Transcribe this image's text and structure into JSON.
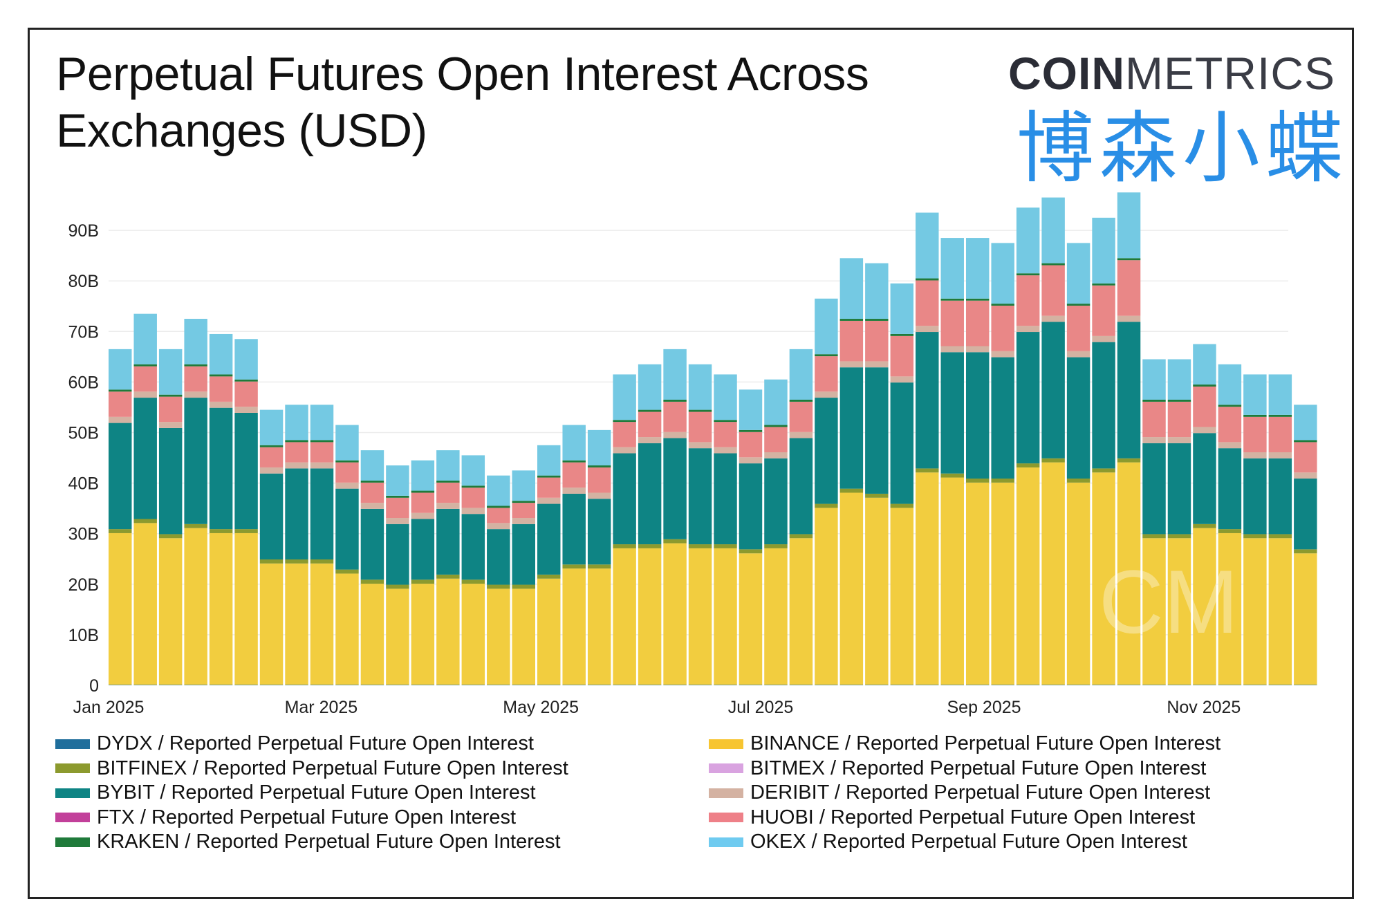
{
  "title": "Perpetual Futures Open Interest Across Exchanges (USD)",
  "logo": {
    "bold": "COIN",
    "thin": "METRICS"
  },
  "watermark_cm": "CM",
  "overlay_watermark": "博森小蝶",
  "chart_data": {
    "type": "bar",
    "stacked": true,
    "title": "Perpetual Futures Open Interest Across Exchanges (USD)",
    "xlabel": "",
    "ylabel": "",
    "ylim": [
      0,
      100
    ],
    "y_unit": "B USD",
    "yticks": [
      "0",
      "10B",
      "20B",
      "30B",
      "40B",
      "50B",
      "60B",
      "70B",
      "80B",
      "90B"
    ],
    "ytick_values": [
      0,
      10,
      20,
      30,
      40,
      50,
      60,
      70,
      80,
      90
    ],
    "xticks": [
      {
        "label": "Jan 2025",
        "day": 0
      },
      {
        "label": "Mar 2025",
        "day": 59
      },
      {
        "label": "May 2025",
        "day": 120
      },
      {
        "label": "Jul 2025",
        "day": 181
      },
      {
        "label": "Sep 2025",
        "day": 243
      },
      {
        "label": "Nov 2025",
        "day": 304
      }
    ],
    "x_start": "2025-01-01",
    "x_step_days": 7,
    "grid": true,
    "legend_position": "bottom",
    "series": [
      {
        "name": "DYDX / Reported Perpetual Future Open Interest",
        "color": "#1f6e9c",
        "constant": 0.1
      },
      {
        "name": "BINANCE / Reported Perpetual Future Open Interest",
        "color": "#f2cd3f",
        "values": [
          30,
          32,
          29,
          31,
          30,
          30,
          24,
          24,
          24,
          22,
          20,
          19,
          20,
          21,
          20,
          19,
          19,
          21,
          23,
          23,
          27,
          27,
          28,
          27,
          27,
          26,
          27,
          29,
          35,
          38,
          37,
          35,
          42,
          41,
          40,
          40,
          43,
          44,
          40,
          42,
          44,
          29,
          29,
          31,
          30,
          29,
          29,
          26
        ]
      },
      {
        "name": "BITFINEX / Reported Perpetual Future Open Interest",
        "color": "#8c9a2e",
        "constant": 0.8
      },
      {
        "name": "BYBIT / Reported Perpetual Future Open Interest",
        "color": "#0e8484",
        "values": [
          21,
          24,
          21,
          25,
          24,
          23,
          17,
          18,
          18,
          16,
          14,
          12,
          12,
          13,
          13,
          11,
          12,
          14,
          14,
          13,
          18,
          20,
          20,
          19,
          18,
          17,
          17,
          19,
          21,
          24,
          25,
          24,
          27,
          24,
          25,
          24,
          26,
          27,
          24,
          25,
          27,
          18,
          18,
          18,
          16,
          15,
          15,
          14
        ]
      },
      {
        "name": "DERIBIT / Reported Perpetual Future Open Interest",
        "color": "#d4b2a2",
        "constant": 1.2
      },
      {
        "name": "HUOBI / Reported Perpetual Future Open Interest",
        "color": "#e98787",
        "values": [
          5,
          5,
          5,
          5,
          5,
          5,
          4,
          4,
          4,
          4,
          4,
          4,
          4,
          4,
          4,
          3,
          3,
          4,
          5,
          5,
          5,
          5,
          6,
          6,
          5,
          5,
          5,
          6,
          7,
          8,
          8,
          8,
          9,
          9,
          9,
          9,
          10,
          10,
          9,
          10,
          11,
          7,
          7,
          8,
          7,
          7,
          7,
          6
        ]
      },
      {
        "name": "KRAKEN / Reported Perpetual Future Open Interest",
        "color": "#1f7a3a",
        "constant": 0.4
      },
      {
        "name": "OKEX / Reported Perpetual Future Open Interest",
        "color": "#74c9e3",
        "values": [
          8,
          10,
          9,
          9,
          8,
          8,
          7,
          7,
          7,
          7,
          6,
          6,
          6,
          6,
          6,
          6,
          6,
          6,
          7,
          7,
          9,
          9,
          10,
          9,
          9,
          8,
          9,
          10,
          11,
          12,
          11,
          10,
          13,
          12,
          12,
          12,
          13,
          13,
          12,
          13,
          13,
          8,
          8,
          8,
          8,
          8,
          8,
          7
        ]
      },
      {
        "name": "BITMEX / Reported Perpetual Future Open Interest",
        "color": "#d9a3e0",
        "constant": 0.2
      },
      {
        "name": "FTX / Reported Perpetual Future Open Interest",
        "color": "#c2409a",
        "constant": 0
      }
    ]
  },
  "legend": {
    "left": [
      {
        "label": "DYDX / Reported Perpetual Future Open Interest",
        "color": "#1f6e9c"
      },
      {
        "label": "BITFINEX / Reported Perpetual Future Open Interest",
        "color": "#8c9a2e"
      },
      {
        "label": "BYBIT / Reported Perpetual Future Open Interest",
        "color": "#0e8484"
      },
      {
        "label": "FTX / Reported Perpetual Future Open Interest",
        "color": "#c2409a"
      },
      {
        "label": "KRAKEN / Reported Perpetual Future Open Interest",
        "color": "#1f7a3a"
      }
    ],
    "right": [
      {
        "label": "BINANCE / Reported Perpetual Future Open Interest",
        "color": "#f7c531"
      },
      {
        "label": "BITMEX / Reported Perpetual Future Open Interest",
        "color": "#d9a3e0"
      },
      {
        "label": "DERIBIT / Reported Perpetual Future Open Interest",
        "color": "#d4b2a2"
      },
      {
        "label": "HUOBI / Reported Perpetual Future Open Interest",
        "color": "#ee8088"
      },
      {
        "label": "OKEX / Reported Perpetual Future Open Interest",
        "color": "#6fcbf0"
      }
    ]
  }
}
